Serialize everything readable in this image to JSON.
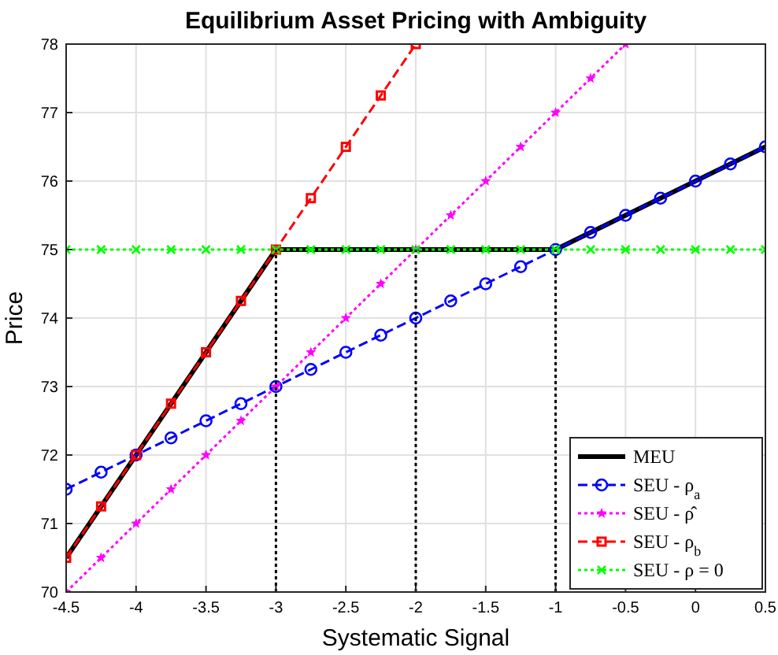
{
  "chart_data": {
    "type": "line",
    "title": "Equilibrium Asset Pricing with Ambiguity",
    "xlabel": "Systematic Signal",
    "ylabel": "Price",
    "xlim": [
      -4.5,
      0.5
    ],
    "xticks": [
      -4.5,
      -4,
      -3.5,
      -3,
      -2.5,
      -2,
      -1.5,
      -1,
      -0.5,
      0,
      0.5
    ],
    "ylim": [
      70,
      78
    ],
    "yticks": [
      70,
      71,
      72,
      73,
      74,
      75,
      76,
      77,
      78
    ],
    "grid": true,
    "legend": "bottom right",
    "series": [
      {
        "name": "MEU",
        "color": "#000000",
        "marker": "none",
        "line_style": "solid",
        "x": [
          -4.5,
          -3,
          -1,
          0.5
        ],
        "values": [
          70.5,
          75,
          75,
          76.5
        ]
      },
      {
        "name": "SEU - ρ$_{a}$",
        "color": "#0000ff",
        "marker": "circle",
        "line_style": "dashed",
        "x": [
          -4.5,
          -4.25,
          -4,
          -3.75,
          -3.5,
          -3.25,
          -3,
          -2.75,
          -2.5,
          -2.25,
          -2,
          -1.75,
          -1.5,
          -1.25,
          -1,
          -0.75,
          -0.5,
          -0.25,
          0,
          0.25,
          0.5
        ],
        "values": [
          71.5,
          71.75,
          72,
          72.25,
          72.5,
          72.75,
          73,
          73.25,
          73.5,
          73.75,
          74,
          74.25,
          74.5,
          74.75,
          75,
          75.25,
          75.5,
          75.75,
          76,
          76.25,
          76.5
        ]
      },
      {
        "name": "SEU - ρ̂",
        "color": "#ff00ff",
        "marker": "star",
        "line_style": "dotted",
        "x": [
          -4.5,
          -4.25,
          -4,
          -3.75,
          -3.5,
          -3.25,
          -3,
          -2.75,
          -2.5,
          -2.25,
          -2,
          -1.75,
          -1.5,
          -1.25,
          -1,
          -0.75,
          -0.5
        ],
        "values": [
          70,
          70.5,
          71,
          71.5,
          72,
          72.5,
          73,
          73.5,
          74,
          74.5,
          75,
          75.5,
          76,
          76.5,
          77,
          77.5,
          78
        ]
      },
      {
        "name": "SEU - ρ$_{b}$",
        "color": "#ff0000",
        "marker": "square",
        "line_style": "dashed",
        "x": [
          -4.5,
          -4.25,
          -4,
          -3.75,
          -3.5,
          -3.25,
          -3,
          -2.75,
          -2.5,
          -2.25,
          -2
        ],
        "values": [
          70.5,
          71.25,
          72,
          72.75,
          73.5,
          74.25,
          75,
          75.75,
          76.5,
          77.25,
          78
        ]
      },
      {
        "name": "SEU - ρ = 0",
        "color": "#00ff00",
        "marker": "cross",
        "line_style": "dotted",
        "x": [
          -4.5,
          -4.25,
          -4,
          -3.75,
          -3.5,
          -3.25,
          -3,
          -2.75,
          -2.5,
          -2.25,
          -2,
          -1.75,
          -1.5,
          -1.25,
          -1,
          -0.75,
          -0.5,
          -0.25,
          0,
          0.25,
          0.5
        ],
        "values": [
          75,
          75,
          75,
          75,
          75,
          75,
          75,
          75,
          75,
          75,
          75,
          75,
          75,
          75,
          75,
          75,
          75,
          75,
          75,
          75,
          75
        ]
      },
      {
        "color": "#000000",
        "marker": "none",
        "line_style": "dotted",
        "x": [
          -3,
          -3
        ],
        "values": [
          70,
          75
        ]
      },
      {
        "color": "#000000",
        "marker": "none",
        "line_style": "dotted",
        "x": [
          -2,
          -2
        ],
        "values": [
          70,
          75
        ]
      },
      {
        "color": "#000000",
        "marker": "none",
        "line_style": "dotted",
        "x": [
          -1,
          -1
        ],
        "values": [
          70,
          75
        ]
      }
    ]
  }
}
